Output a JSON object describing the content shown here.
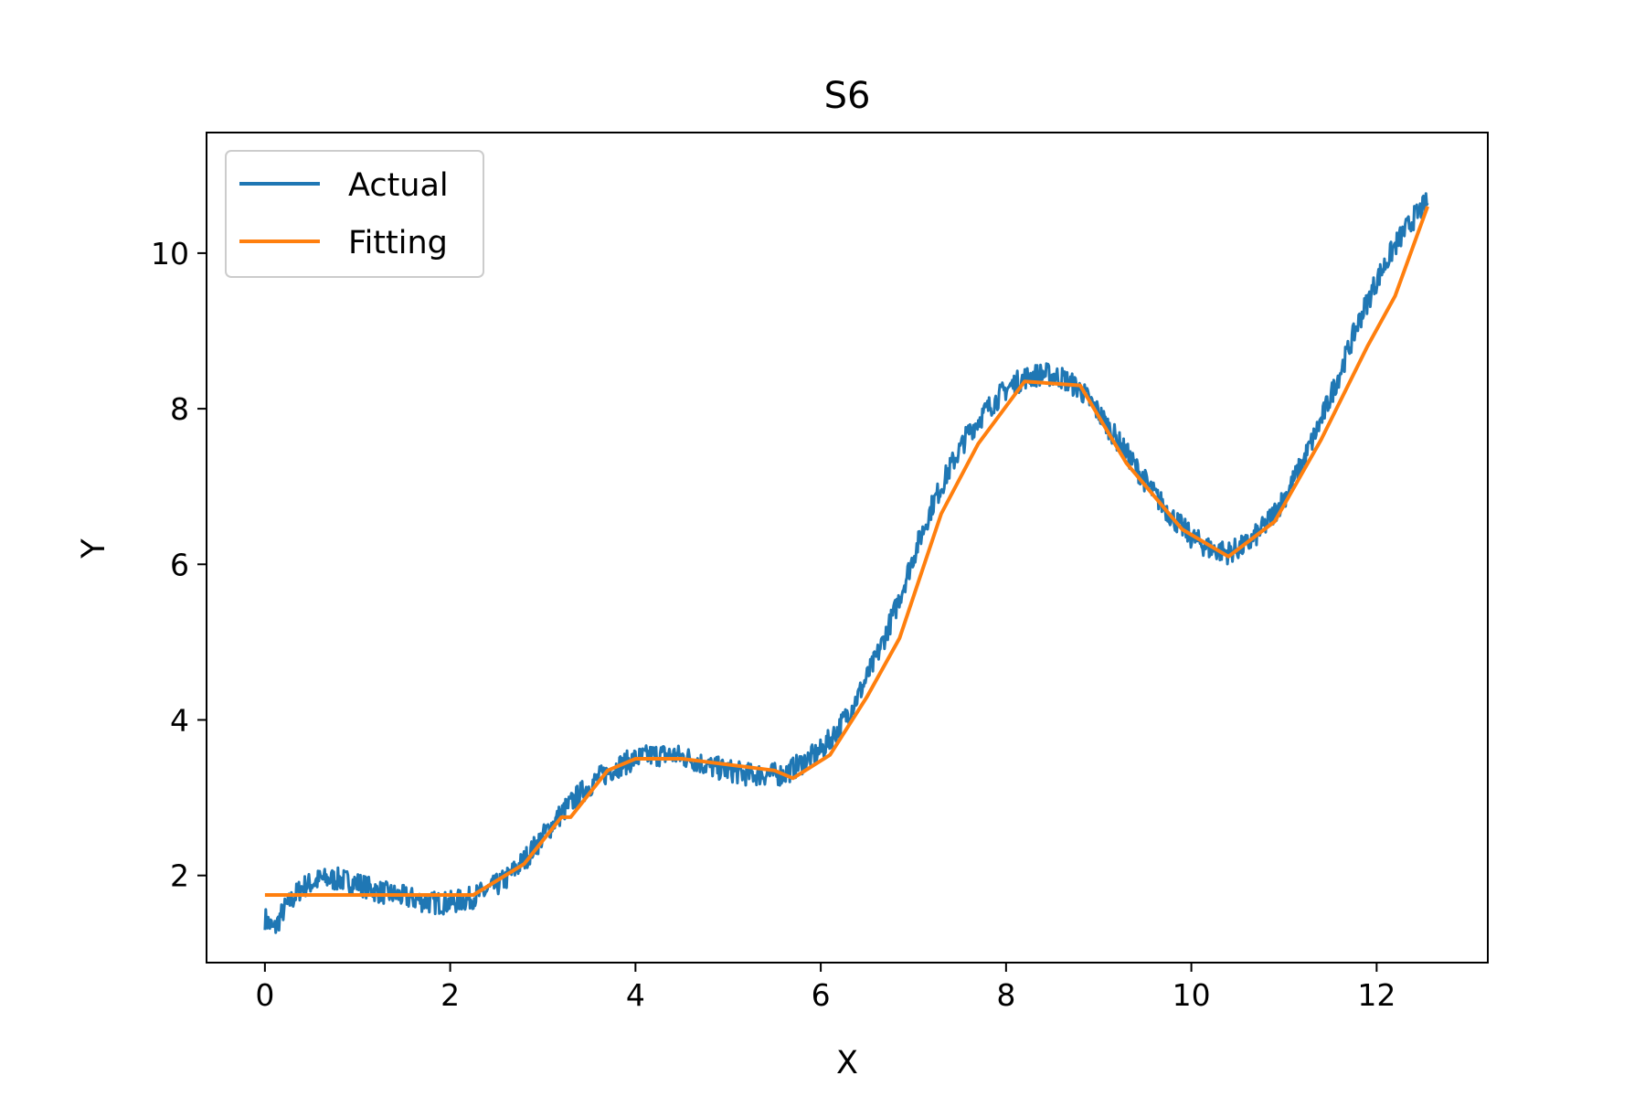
{
  "chart_data": {
    "type": "line",
    "title": "S6",
    "xlabel": "X",
    "ylabel": "Y",
    "xlim": [
      -0.63,
      13.2
    ],
    "ylim": [
      0.88,
      11.55
    ],
    "xticks": [
      0,
      2,
      4,
      6,
      8,
      10,
      12
    ],
    "yticks": [
      2,
      4,
      6,
      8,
      10
    ],
    "grid": false,
    "legend_position": "top-left",
    "series": [
      {
        "name": "Actual",
        "color": "#1f77b4",
        "noise_band": 0.15,
        "x": [
          0.0,
          0.1,
          0.2,
          0.4,
          0.6,
          0.8,
          1.0,
          1.2,
          1.4,
          1.6,
          1.8,
          2.0,
          2.2,
          2.4,
          2.6,
          2.8,
          3.0,
          3.2,
          3.4,
          3.6,
          3.8,
          4.0,
          4.2,
          4.4,
          4.6,
          4.8,
          5.0,
          5.2,
          5.4,
          5.6,
          5.8,
          6.0,
          6.2,
          6.4,
          6.6,
          6.8,
          7.0,
          7.2,
          7.4,
          7.6,
          7.8,
          8.0,
          8.2,
          8.4,
          8.6,
          8.8,
          9.0,
          9.2,
          9.4,
          9.6,
          9.8,
          10.0,
          10.2,
          10.4,
          10.6,
          10.8,
          11.0,
          11.2,
          11.4,
          11.6,
          11.8,
          12.0,
          12.2,
          12.4,
          12.55
        ],
        "values": [
          1.45,
          1.3,
          1.55,
          1.85,
          1.95,
          1.95,
          1.9,
          1.8,
          1.75,
          1.7,
          1.65,
          1.65,
          1.7,
          1.8,
          1.95,
          2.2,
          2.5,
          2.8,
          3.05,
          3.25,
          3.4,
          3.5,
          3.55,
          3.55,
          3.5,
          3.4,
          3.35,
          3.3,
          3.3,
          3.3,
          3.45,
          3.6,
          3.9,
          4.3,
          4.8,
          5.4,
          6.1,
          6.75,
          7.25,
          7.7,
          8.0,
          8.25,
          8.4,
          8.45,
          8.4,
          8.25,
          7.95,
          7.6,
          7.25,
          6.9,
          6.6,
          6.35,
          6.2,
          6.15,
          6.25,
          6.5,
          6.85,
          7.3,
          7.85,
          8.45,
          9.1,
          9.65,
          10.1,
          10.45,
          10.65
        ]
      },
      {
        "name": "Fitting",
        "color": "#ff7f0e",
        "x": [
          0.0,
          2.25,
          2.8,
          3.2,
          3.3,
          3.7,
          4.0,
          4.5,
          5.5,
          5.7,
          6.1,
          6.5,
          6.85,
          7.3,
          7.7,
          8.2,
          8.8,
          9.3,
          9.9,
          10.4,
          10.9,
          11.4,
          11.9,
          12.2,
          12.55
        ],
        "values": [
          1.75,
          1.75,
          2.15,
          2.75,
          2.75,
          3.35,
          3.5,
          3.5,
          3.35,
          3.25,
          3.55,
          4.3,
          5.05,
          6.65,
          7.55,
          8.35,
          8.3,
          7.3,
          6.45,
          6.1,
          6.55,
          7.6,
          8.8,
          9.45,
          10.6
        ]
      }
    ]
  }
}
